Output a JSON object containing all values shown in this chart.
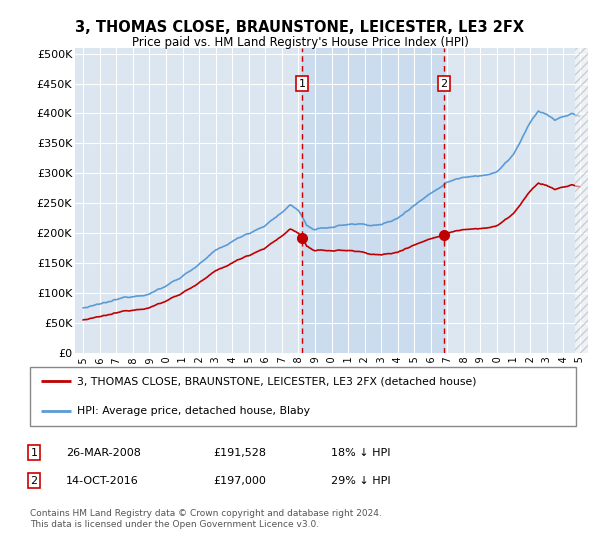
{
  "title": "3, THOMAS CLOSE, BRAUNSTONE, LEICESTER, LE3 2FX",
  "subtitle": "Price paid vs. HM Land Registry's House Price Index (HPI)",
  "ylim": [
    0,
    500000
  ],
  "yticks": [
    0,
    50000,
    100000,
    150000,
    200000,
    250000,
    300000,
    350000,
    400000,
    450000,
    500000
  ],
  "ytick_labels": [
    "£0",
    "£50K",
    "£100K",
    "£150K",
    "£200K",
    "£250K",
    "£300K",
    "£350K",
    "£400K",
    "£450K",
    "£500K"
  ],
  "hpi_color": "#5b9bd5",
  "price_color": "#c00000",
  "vline_color": "#cc0000",
  "sale1_date": 2008.23,
  "sale1_price": 191528,
  "sale1_label": "1",
  "sale2_date": 2016.79,
  "sale2_price": 197000,
  "sale2_label": "2",
  "legend_line1": "3, THOMAS CLOSE, BRAUNSTONE, LEICESTER, LE3 2FX (detached house)",
  "legend_line2": "HPI: Average price, detached house, Blaby",
  "footer": "Contains HM Land Registry data © Crown copyright and database right 2024.\nThis data is licensed under the Open Government Licence v3.0.",
  "background_color": "#ffffff",
  "plot_bg_color": "#dce6f1",
  "span_color": "#c5d8ee"
}
